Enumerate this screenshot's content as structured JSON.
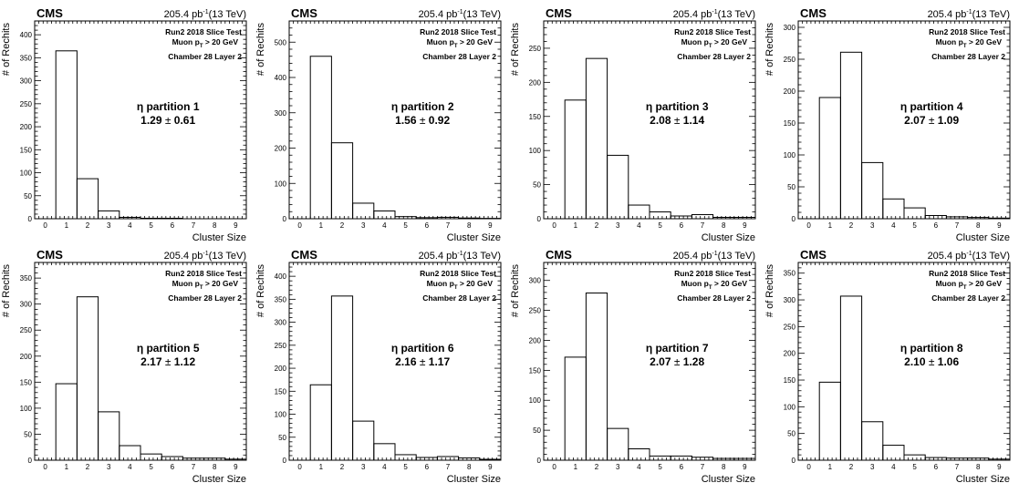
{
  "header": {
    "experiment": "CMS",
    "lumi": "205.4 pb",
    "lumi_exp": "-1",
    "energy": "(13 TeV)"
  },
  "labels": {
    "line1": "Run2 2018 Slice Test",
    "line2_prefix": "Muon p",
    "line2_sub": "T",
    "line2_suffix": " > 20 GeV",
    "line3": "Chamber 28 Layer 2",
    "eta_prefix": "η partition ",
    "pm": "±"
  },
  "chart_data": [
    {
      "type": "bar",
      "xlabel": "Cluster Size",
      "ylabel": "# of Rechits",
      "xlim": [
        -0.5,
        9.5
      ],
      "ylim": [
        0,
        430
      ],
      "categories": [
        "0",
        "1",
        "2",
        "3",
        "4",
        "5",
        "6",
        "7",
        "8",
        "9"
      ],
      "values": [
        0,
        365,
        87,
        17,
        3,
        1,
        1,
        0,
        0,
        0
      ],
      "partition": "1",
      "mean": "1.29",
      "rms": "0.61",
      "yticks": [
        0,
        50,
        100,
        150,
        200,
        250,
        300,
        350,
        400
      ]
    },
    {
      "type": "bar",
      "xlabel": "Cluster Size",
      "ylabel": "# of Rechits",
      "xlim": [
        -0.5,
        9.5
      ],
      "ylim": [
        0,
        560
      ],
      "categories": [
        "0",
        "1",
        "2",
        "3",
        "4",
        "5",
        "6",
        "7",
        "8",
        "9"
      ],
      "values": [
        0,
        460,
        215,
        44,
        22,
        6,
        3,
        4,
        2,
        1
      ],
      "partition": "2",
      "mean": "1.56",
      "rms": "0.92",
      "yticks": [
        0,
        100,
        200,
        300,
        400,
        500
      ]
    },
    {
      "type": "bar",
      "xlabel": "Cluster Size",
      "ylabel": "# of Rechits",
      "xlim": [
        -0.5,
        9.5
      ],
      "ylim": [
        0,
        290
      ],
      "categories": [
        "0",
        "1",
        "2",
        "3",
        "4",
        "5",
        "6",
        "7",
        "8",
        "9"
      ],
      "values": [
        0,
        174,
        235,
        93,
        20,
        10,
        4,
        6,
        2,
        2
      ],
      "partition": "3",
      "mean": "2.08",
      "rms": "1.14",
      "yticks": [
        0,
        50,
        100,
        150,
        200,
        250
      ]
    },
    {
      "type": "bar",
      "xlabel": "Cluster Size",
      "ylabel": "# of Rechits",
      "xlim": [
        -0.5,
        9.5
      ],
      "ylim": [
        0,
        310
      ],
      "categories": [
        "0",
        "1",
        "2",
        "3",
        "4",
        "5",
        "6",
        "7",
        "8",
        "9"
      ],
      "values": [
        0,
        190,
        261,
        88,
        31,
        17,
        5,
        3,
        2,
        1
      ],
      "partition": "4",
      "mean": "2.07",
      "rms": "1.09",
      "yticks": [
        0,
        50,
        100,
        150,
        200,
        250,
        300
      ]
    },
    {
      "type": "bar",
      "xlabel": "Cluster Size",
      "ylabel": "# of Rechits",
      "xlim": [
        -0.5,
        9.5
      ],
      "ylim": [
        0,
        380
      ],
      "categories": [
        "0",
        "1",
        "2",
        "3",
        "4",
        "5",
        "6",
        "7",
        "8",
        "9"
      ],
      "values": [
        0,
        147,
        314,
        93,
        28,
        12,
        7,
        4,
        4,
        2
      ],
      "partition": "5",
      "mean": "2.17",
      "rms": "1.12",
      "yticks": [
        0,
        50,
        100,
        150,
        200,
        250,
        300,
        350
      ]
    },
    {
      "type": "bar",
      "xlabel": "Cluster Size",
      "ylabel": "# of Rechits",
      "xlim": [
        -0.5,
        9.5
      ],
      "ylim": [
        0,
        430
      ],
      "categories": [
        "0",
        "1",
        "2",
        "3",
        "4",
        "5",
        "6",
        "7",
        "8",
        "9"
      ],
      "values": [
        0,
        164,
        357,
        85,
        36,
        12,
        6,
        8,
        5,
        2
      ],
      "partition": "6",
      "mean": "2.16",
      "rms": "1.17",
      "yticks": [
        0,
        50,
        100,
        150,
        200,
        250,
        300,
        350,
        400
      ]
    },
    {
      "type": "bar",
      "xlabel": "Cluster Size",
      "ylabel": "# of Rechits",
      "xlim": [
        -0.5,
        9.5
      ],
      "ylim": [
        0,
        330
      ],
      "categories": [
        "0",
        "1",
        "2",
        "3",
        "4",
        "5",
        "6",
        "7",
        "8",
        "9"
      ],
      "values": [
        0,
        172,
        279,
        53,
        19,
        7,
        7,
        5,
        3,
        3
      ],
      "partition": "7",
      "mean": "2.07",
      "rms": "1.28",
      "yticks": [
        0,
        50,
        100,
        150,
        200,
        250,
        300
      ]
    },
    {
      "type": "bar",
      "xlabel": "Cluster Size",
      "ylabel": "# of Rechits",
      "xlim": [
        -0.5,
        9.5
      ],
      "ylim": [
        0,
        370
      ],
      "categories": [
        "0",
        "1",
        "2",
        "3",
        "4",
        "5",
        "6",
        "7",
        "8",
        "9"
      ],
      "values": [
        0,
        146,
        307,
        72,
        28,
        10,
        5,
        4,
        4,
        2
      ],
      "partition": "8",
      "mean": "2.10",
      "rms": "1.06",
      "yticks": [
        0,
        50,
        100,
        150,
        200,
        250,
        300,
        350
      ]
    }
  ]
}
